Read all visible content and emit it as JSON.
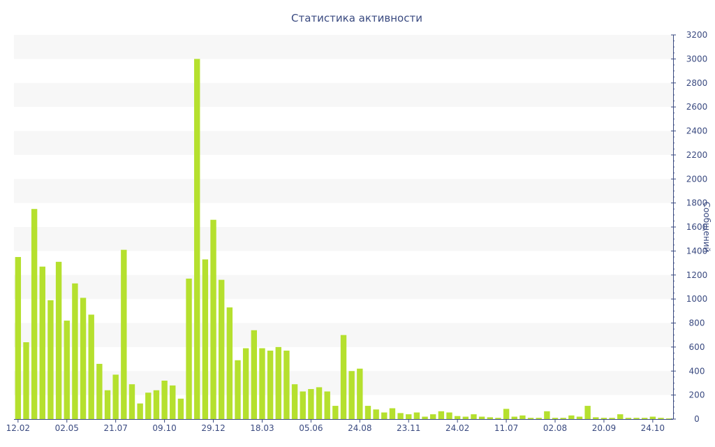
{
  "chart_data": {
    "type": "bar",
    "title": "Статистика активности",
    "ylabel": "Сообщений",
    "ylim": [
      0,
      3200
    ],
    "yticks": [
      0,
      200,
      400,
      600,
      800,
      1000,
      1200,
      1400,
      1600,
      1800,
      2000,
      2200,
      2400,
      2600,
      2800,
      3000,
      3200
    ],
    "y_axis_position": "right",
    "bar_color": "#b5e02e",
    "band_color": "#f7f7f7",
    "xtick_labels": [
      {
        "index": 0,
        "label": "12.02"
      },
      {
        "index": 6,
        "label": "02.05"
      },
      {
        "index": 12,
        "label": "21.07"
      },
      {
        "index": 18,
        "label": "09.10"
      },
      {
        "index": 24,
        "label": "29.12"
      },
      {
        "index": 30,
        "label": "18.03"
      },
      {
        "index": 36,
        "label": "05.06"
      },
      {
        "index": 42,
        "label": "24.08"
      },
      {
        "index": 48,
        "label": "23.11"
      },
      {
        "index": 54,
        "label": "24.02"
      },
      {
        "index": 60,
        "label": "11.07"
      },
      {
        "index": 66,
        "label": "02.08"
      },
      {
        "index": 72,
        "label": "20.09"
      },
      {
        "index": 78,
        "label": "24.10"
      }
    ],
    "values": [
      1350,
      640,
      1750,
      1270,
      990,
      1310,
      820,
      1130,
      1010,
      870,
      460,
      240,
      370,
      1410,
      290,
      130,
      220,
      240,
      320,
      280,
      170,
      1170,
      3000,
      1330,
      1660,
      1160,
      930,
      490,
      590,
      740,
      590,
      570,
      600,
      570,
      290,
      230,
      250,
      265,
      230,
      110,
      700,
      400,
      420,
      110,
      80,
      55,
      90,
      50,
      40,
      55,
      20,
      40,
      65,
      55,
      25,
      20,
      40,
      20,
      15,
      10,
      85,
      20,
      30,
      10,
      10,
      65,
      10,
      10,
      30,
      20,
      110,
      15,
      10,
      10,
      40,
      10,
      10,
      10,
      20,
      10,
      5
    ]
  }
}
